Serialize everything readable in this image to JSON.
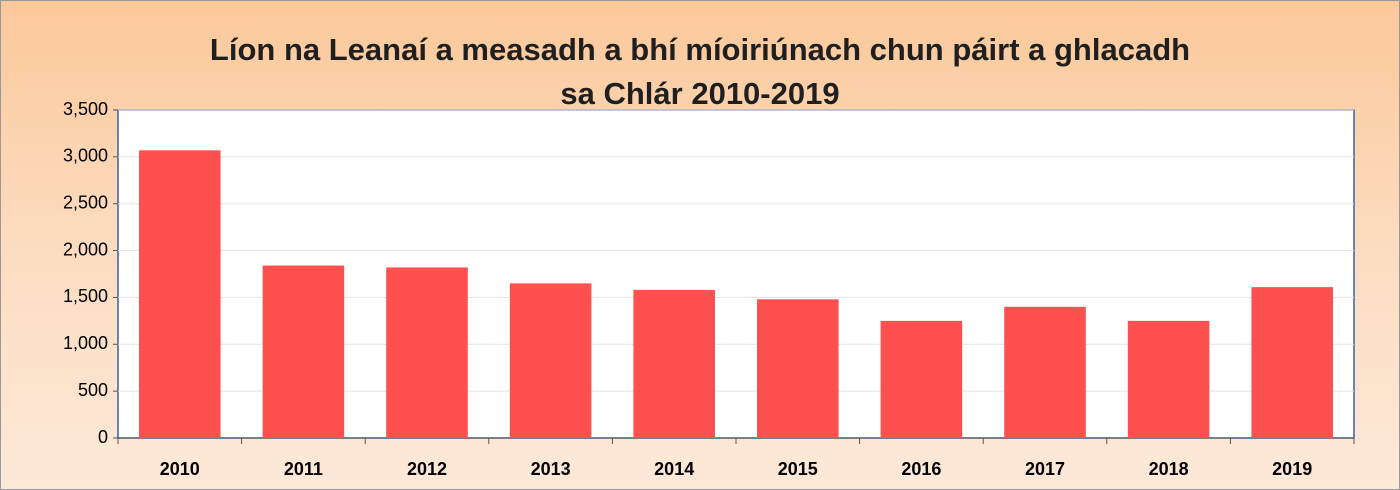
{
  "chart_data": {
    "type": "bar",
    "title": "Líon na Leanaí a measadh a bhí míoiriúnach chun páirt a ghlacadh sa Chlár 2010-2019",
    "categories": [
      "2010",
      "2011",
      "2012",
      "2013",
      "2014",
      "2015",
      "2016",
      "2017",
      "2018",
      "2019"
    ],
    "values": [
      3070,
      1840,
      1820,
      1650,
      1580,
      1480,
      1250,
      1400,
      1250,
      1610
    ],
    "color": "#ff5050",
    "ylim": [
      0,
      3500
    ],
    "yticks": [
      0,
      500,
      {
        "value": 1000,
        "label": "1,000"
      },
      {
        "value": 1500,
        "label": "1,500"
      },
      {
        "value": 2000,
        "label": "2,000"
      },
      {
        "value": 2500,
        "label": "2,500"
      },
      {
        "value": 3000,
        "label": "3,000"
      },
      {
        "value": 3500,
        "label": "3,500"
      }
    ],
    "grid": true
  }
}
